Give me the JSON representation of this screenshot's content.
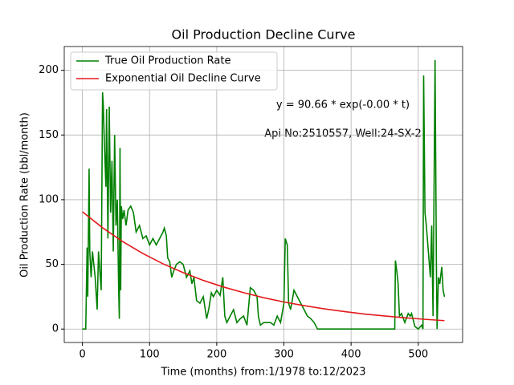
{
  "chart_data": {
    "type": "line",
    "title": "Oil Production Decline Curve",
    "xlabel": "Time (months) from:1/1978 to:12/2023",
    "ylabel": "Oil Production Rate (bbl/month)",
    "annotations": [
      "y = 90.66 * exp(-0.00 * t)",
      "Api No:2510557, Well:24-SX-2"
    ],
    "xlim": [
      -27,
      566
    ],
    "ylim": [
      -10.4,
      218.4
    ],
    "xticks": [
      0,
      100,
      200,
      300,
      400,
      500
    ],
    "yticks": [
      0,
      50,
      100,
      150,
      200
    ],
    "grid": true,
    "legend": "upper left",
    "series": [
      {
        "name": "True Oil Production Rate",
        "color": "#008000",
        "x": [
          0,
          5,
          7,
          8,
          10,
          11,
          13,
          15,
          17,
          19,
          22,
          24,
          26,
          28,
          30,
          31,
          33,
          35,
          36,
          38,
          40,
          42,
          44,
          46,
          48,
          50,
          52,
          54,
          55,
          56,
          57,
          58,
          60,
          62,
          65,
          68,
          72,
          76,
          80,
          85,
          90,
          95,
          100,
          105,
          110,
          115,
          120,
          122,
          125,
          127,
          130,
          133,
          136,
          140,
          145,
          150,
          155,
          160,
          163,
          166,
          170,
          175,
          180,
          185,
          188,
          192,
          195,
          200,
          205,
          209,
          212,
          215,
          220,
          225,
          230,
          235,
          240,
          245,
          250,
          255,
          260,
          262,
          265,
          270,
          275,
          280,
          285,
          290,
          295,
          300,
          302,
          305,
          307,
          310,
          315,
          320,
          325,
          330,
          335,
          340,
          345,
          350,
          400,
          465,
          466,
          468,
          470,
          472,
          475,
          480,
          485,
          488,
          490,
          495,
          500,
          505,
          507,
          508,
          510,
          512,
          515,
          518,
          520,
          522,
          525,
          527,
          528,
          530,
          532,
          535,
          537,
          539
        ],
        "values": [
          0,
          0,
          63,
          25,
          124,
          60,
          40,
          60,
          50,
          40,
          15,
          60,
          45,
          30,
          183,
          175,
          140,
          110,
          170,
          70,
          172,
          90,
          130,
          60,
          150,
          80,
          100,
          30,
          8,
          140,
          30,
          95,
          85,
          92,
          80,
          92,
          95,
          90,
          75,
          80,
          70,
          72,
          65,
          70,
          65,
          70,
          75,
          78,
          72,
          55,
          52,
          40,
          45,
          50,
          52,
          50,
          40,
          45,
          35,
          40,
          22,
          20,
          25,
          8,
          15,
          28,
          25,
          30,
          26,
          40,
          10,
          5,
          10,
          15,
          5,
          8,
          10,
          3,
          32,
          30,
          25,
          10,
          3,
          5,
          5,
          5,
          3,
          10,
          5,
          20,
          70,
          65,
          20,
          15,
          30,
          25,
          20,
          15,
          10,
          8,
          5,
          0,
          0,
          0,
          53,
          45,
          35,
          10,
          12,
          5,
          12,
          10,
          12,
          2,
          0,
          3,
          0,
          196,
          90,
          80,
          60,
          40,
          80,
          10,
          208,
          50,
          0,
          40,
          35,
          48,
          30,
          25
        ]
      },
      {
        "name": "Exponential Oil Decline Curve",
        "color": "#e31a1c",
        "x": [
          0,
          30,
          60,
          90,
          120,
          150,
          180,
          210,
          240,
          270,
          300,
          330,
          360,
          390,
          420,
          450,
          480,
          510,
          539
        ],
        "values": [
          90.66,
          78.3,
          67.6,
          58.4,
          50.4,
          43.6,
          37.6,
          32.5,
          28.1,
          24.2,
          20.9,
          18.1,
          15.6,
          13.5,
          11.6,
          10.1,
          8.7,
          7.5,
          6.5
        ]
      }
    ]
  }
}
